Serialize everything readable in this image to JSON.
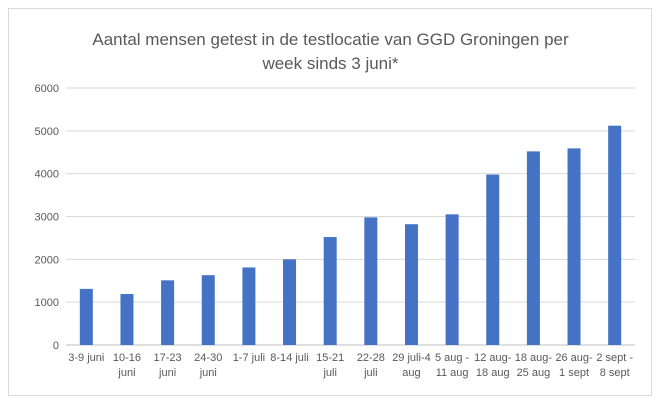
{
  "chart_data": {
    "type": "bar",
    "title_lines": [
      "Aantal mensen getest in de testlocatie van GGD Groningen per",
      "week sinds 3 juni*"
    ],
    "categories": [
      [
        "3-9 juni"
      ],
      [
        "10-16",
        "juni"
      ],
      [
        "17-23",
        "juni"
      ],
      [
        "24-30",
        "juni"
      ],
      [
        "1-7 juli"
      ],
      [
        "8-14 juli"
      ],
      [
        "15-21",
        "juli"
      ],
      [
        "22-28",
        "juli"
      ],
      [
        "29 juli-4",
        "aug"
      ],
      [
        "5 aug -",
        "11 aug"
      ],
      [
        "12 aug-",
        "18 aug"
      ],
      [
        "18 aug-",
        "25 aug"
      ],
      [
        "26 aug-",
        "1 sept"
      ],
      [
        "2 sept -",
        "8 sept"
      ]
    ],
    "values": [
      1310,
      1190,
      1510,
      1630,
      1810,
      2000,
      2520,
      2980,
      2820,
      3050,
      3980,
      4520,
      4590,
      5120
    ],
    "ylim": [
      0,
      6000
    ],
    "yticks": [
      0,
      1000,
      2000,
      3000,
      4000,
      5000,
      6000
    ],
    "xlabel": "",
    "ylabel": "",
    "grid": true,
    "legend": "none",
    "bar_color": "#4472c4",
    "grid_color": "#d9d9d9",
    "axis_color": "#bfbfbf",
    "text_color": "#595959"
  }
}
